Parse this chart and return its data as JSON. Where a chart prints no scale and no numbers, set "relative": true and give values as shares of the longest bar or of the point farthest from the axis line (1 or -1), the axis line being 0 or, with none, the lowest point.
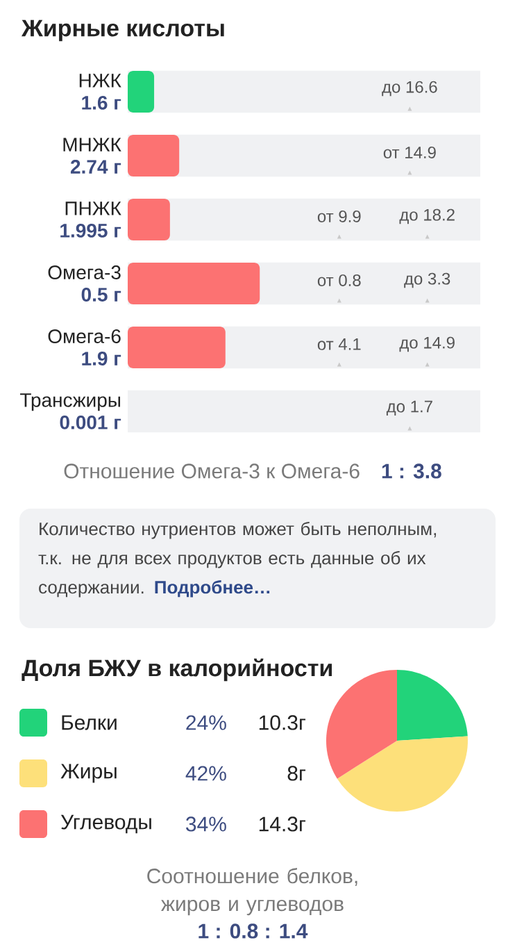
{
  "chart_data": [
    {
      "type": "bar",
      "orientation": "horizontal",
      "relative": true,
      "title": "Жирные кислоты",
      "categories": [
        "НЖК",
        "МНЖК",
        "ПНЖК",
        "Омега-3",
        "Омега-6",
        "Трансжиры"
      ],
      "values": [
        0.2,
        0.39,
        0.32,
        1,
        0.74,
        0
      ],
      "colors": [
        "#22d37a",
        "#fc7272",
        "#fc7272",
        "#fc7272",
        "#fc7272",
        "#fc7272"
      ],
      "annotations": [
        "1.6 г",
        "2.74 г",
        "1.995 г",
        "0.5 г",
        "1.9 г",
        "0.001 г",
        "до 16.6",
        "от 14.9",
        "от 9.9",
        "до 18.2",
        "от 0.8",
        "до 3.3",
        "от 4.1",
        "до 14.9",
        "до 1.7",
        "Отношение Омега-3 к Омега-6",
        "1 : 3.8",
        "Количество нутриентов может быть неполным, т.к. не для всех продуктов есть данные об их содержании.",
        "Подробнее…"
      ]
    },
    {
      "type": "pie",
      "title": "Доля БЖУ в калорийности",
      "legend": "left",
      "categories": [
        "Белки",
        "Жиры",
        "Углеводы"
      ],
      "values": [
        24,
        42,
        34
      ],
      "colors": [
        "#22d37a",
        "#fde07a",
        "#fc7272"
      ],
      "value_labels": [
        "24%",
        "42%",
        "34%"
      ],
      "annotations": [
        "10.3г",
        "8г",
        "14.3г",
        "Соотношение белков, жиров и углеводов",
        "1 : 0.8 : 1.4"
      ]
    }
  ]
}
